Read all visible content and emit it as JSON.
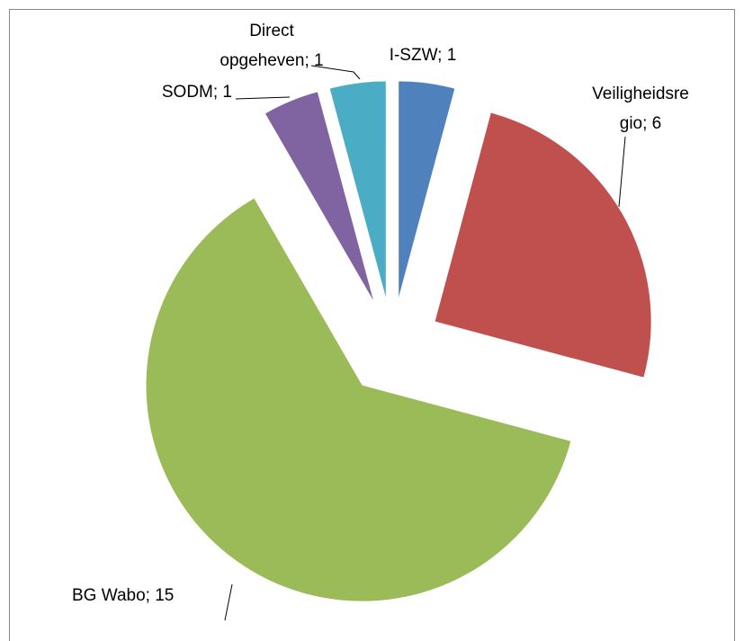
{
  "chart_data": {
    "type": "pie",
    "values": [
      1,
      6,
      15,
      1,
      1
    ],
    "value_labels": [
      "I-SZW; 1",
      "Veiligheidsre\ngio; 6",
      "BG Wabo; 15",
      "SODM; 1",
      "Direct\nopgeheven; 1"
    ],
    "colors": [
      "#4f81bd",
      "#c0504d",
      "#9bbb59",
      "#8064a2",
      "#4bacc6"
    ],
    "exploded": true
  }
}
